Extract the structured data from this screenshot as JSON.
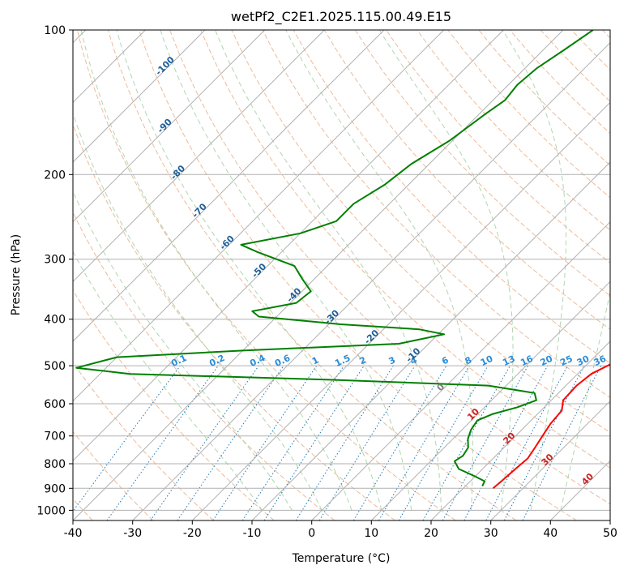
{
  "chart_data": {
    "type": "line",
    "title": "wetPf2_C2E1.2025.115.00.49.E15",
    "xlabel": "Temperature (°C)",
    "ylabel": "Pressure (hPa)",
    "xlim": [
      -40,
      50
    ],
    "ylim": [
      1050,
      100
    ],
    "y_scale": "log",
    "x_ticks": [
      -40,
      -30,
      -20,
      -10,
      0,
      10,
      20,
      30,
      40,
      50
    ],
    "y_ticks": [
      1000,
      900,
      800,
      700,
      600,
      500,
      400,
      300,
      200,
      100
    ],
    "grid": true,
    "skew": true,
    "series": [
      {
        "name": "",
        "color": "#ff0000",
        "values": [
          {
            "p": 900,
            "t": 25.0
          },
          {
            "p": 870,
            "t": 25.2
          },
          {
            "p": 820,
            "t": 25.5
          },
          {
            "p": 780,
            "t": 25.8
          },
          {
            "p": 740,
            "t": 25.2
          },
          {
            "p": 700,
            "t": 24.5
          },
          {
            "p": 660,
            "t": 23.8
          },
          {
            "p": 620,
            "t": 23.5
          },
          {
            "p": 590,
            "t": 22.0
          },
          {
            "p": 550,
            "t": 21.8
          },
          {
            "p": 520,
            "t": 22.3
          },
          {
            "p": 505,
            "t": 23.3
          },
          {
            "p": 495,
            "t": 24.0
          },
          {
            "p": 480,
            "t": 23.0
          },
          {
            "p": 465,
            "t": 22.0
          },
          {
            "p": 440,
            "t": 20.8
          },
          {
            "p": 420,
            "t": 20.4
          },
          {
            "p": 405,
            "t": 19.8
          },
          {
            "p": 380,
            "t": 17.5
          },
          {
            "p": 350,
            "t": 14.0
          },
          {
            "p": 320,
            "t": 10.0
          },
          {
            "p": 300,
            "t": 7.5
          },
          {
            "p": 270,
            "t": 4.0
          },
          {
            "p": 250,
            "t": 1.0
          },
          {
            "p": 220,
            "t": -3.0
          },
          {
            "p": 200,
            "t": -6.0
          },
          {
            "p": 180,
            "t": -10.0
          },
          {
            "p": 160,
            "t": -13.0
          },
          {
            "p": 150,
            "t": -14.5
          },
          {
            "p": 140,
            "t": -16.5
          },
          {
            "p": 130,
            "t": -18.5
          },
          {
            "p": 120,
            "t": -21.0
          },
          {
            "p": 110,
            "t": -23.0
          },
          {
            "p": 100,
            "t": -25.5
          }
        ]
      },
      {
        "name": "",
        "color": "#008000",
        "values": [
          {
            "p": 890,
            "t": 22.8
          },
          {
            "p": 870,
            "t": 22.4
          },
          {
            "p": 850,
            "t": 20.0
          },
          {
            "p": 820,
            "t": 16.0
          },
          {
            "p": 790,
            "t": 14.0
          },
          {
            "p": 770,
            "t": 14.5
          },
          {
            "p": 740,
            "t": 14.0
          },
          {
            "p": 710,
            "t": 12.5
          },
          {
            "p": 680,
            "t": 11.5
          },
          {
            "p": 650,
            "t": 11.0
          },
          {
            "p": 630,
            "t": 12.5
          },
          {
            "p": 610,
            "t": 15.5
          },
          {
            "p": 590,
            "t": 17.5
          },
          {
            "p": 570,
            "t": 16.0
          },
          {
            "p": 550,
            "t": 7.0
          },
          {
            "p": 535,
            "t": -20.0
          },
          {
            "p": 520,
            "t": -55.0
          },
          {
            "p": 505,
            "t": -65.0
          },
          {
            "p": 480,
            "t": -60.0
          },
          {
            "p": 465,
            "t": -40.0
          },
          {
            "p": 450,
            "t": -15.0
          },
          {
            "p": 430,
            "t": -9.0
          },
          {
            "p": 420,
            "t": -14.0
          },
          {
            "p": 410,
            "t": -28.0
          },
          {
            "p": 395,
            "t": -43.0
          },
          {
            "p": 385,
            "t": -45.0
          },
          {
            "p": 370,
            "t": -39.0
          },
          {
            "p": 350,
            "t": -38.5
          },
          {
            "p": 330,
            "t": -42.0
          },
          {
            "p": 310,
            "t": -45.5
          },
          {
            "p": 290,
            "t": -54.0
          },
          {
            "p": 280,
            "t": -58.0
          },
          {
            "p": 265,
            "t": -50.0
          },
          {
            "p": 250,
            "t": -46.0
          },
          {
            "p": 230,
            "t": -46.0
          },
          {
            "p": 210,
            "t": -44.0
          },
          {
            "p": 190,
            "t": -43.0
          },
          {
            "p": 170,
            "t": -40.5
          },
          {
            "p": 150,
            "t": -39.0
          },
          {
            "p": 140,
            "t": -38.0
          },
          {
            "p": 130,
            "t": -38.5
          },
          {
            "p": 120,
            "t": -38.0
          },
          {
            "p": 110,
            "t": -36.5
          },
          {
            "p": 100,
            "t": -35.0
          }
        ]
      }
    ],
    "isotherm_labels": [
      "-100",
      "-90",
      "-80",
      "-70",
      "-60",
      "-50",
      "-40",
      "-30",
      "-20",
      "-10",
      "0",
      "10",
      "20",
      "30",
      "40"
    ],
    "mixing_ratio_labels": [
      "0.1",
      "0.2",
      "0.4",
      "0.6",
      "1",
      "1.5",
      "2",
      "3",
      "4",
      "6",
      "8",
      "10",
      "13",
      "16",
      "20",
      "25",
      "30",
      "36"
    ],
    "colors": {
      "temperature": "#ff0000",
      "dewpoint": "#008000",
      "mixing_ratio": "#1f77b4",
      "dry_adiabat": "#e6a47a",
      "moist_adiabat": "#9ccc9c",
      "grid": "#b0b0b0"
    }
  }
}
